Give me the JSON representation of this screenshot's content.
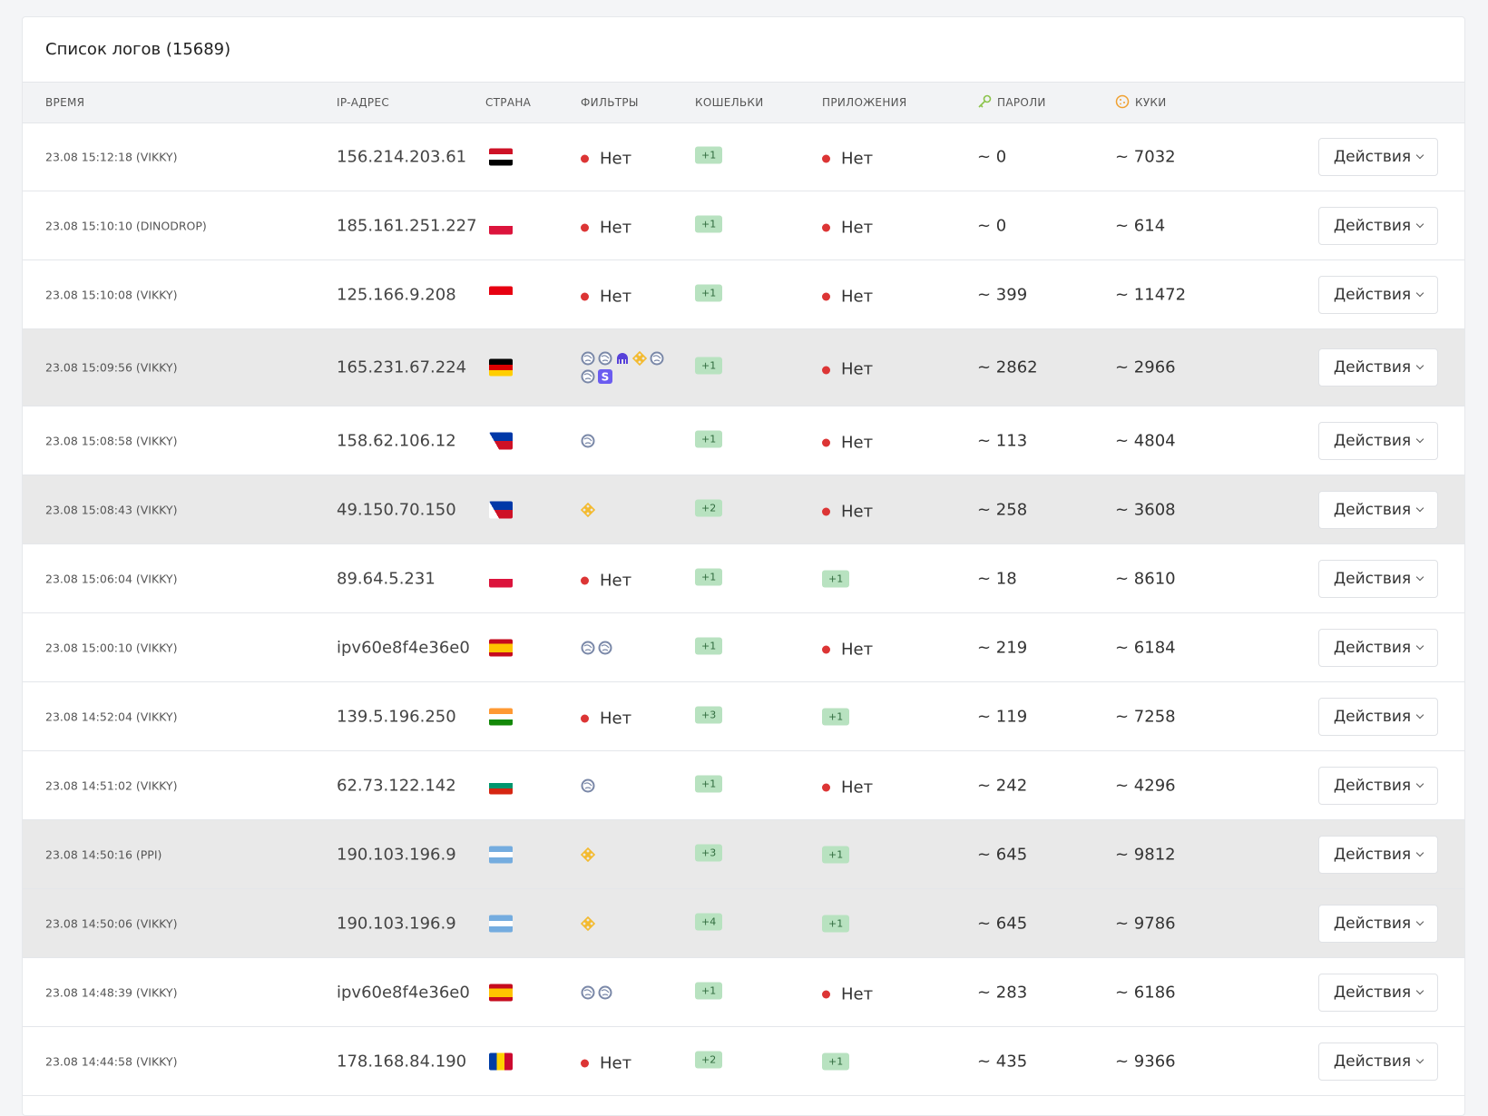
{
  "header": {
    "title": "Список логов (15689)"
  },
  "table": {
    "columns": [
      "ВРЕМЯ",
      "IP-АДРЕС",
      "СТРАНА",
      "ФИЛЬТРЫ",
      "КОШЕЛЬКИ",
      "ПРИЛОЖЕНИЯ",
      "ПАРОЛИ",
      "КУКИ"
    ],
    "rows": [
      {
        "time": "23.08 15:12:18 (VIKKY)",
        "ip": "156.214.203.61",
        "filters": "Нет",
        "wallets": "+1",
        "apps": "Нет",
        "passwords": "~ 0",
        "cookies": "~ 7032",
        "action": "Действия"
      },
      {
        "time": "23.08 15:10:10 (DINODROP)",
        "ip": "185.161.251.227",
        "filters": "Нет",
        "wallets": "+1",
        "apps": "Нет",
        "passwords": "~ 0",
        "cookies": "~ 614",
        "action": "Действия"
      },
      {
        "time": "23.08 15:10:08 (VIKKY)",
        "ip": "125.166.9.208",
        "filters": "Нет",
        "wallets": "+1",
        "apps": "Нет",
        "passwords": "~ 399",
        "cookies": "~ 11472",
        "action": "Действия"
      },
      {
        "time": "23.08 15:09:56 (VIKKY)",
        "ip": "165.231.67.224",
        "wallets": "+1",
        "apps": "Нет",
        "passwords": "~ 2862",
        "cookies": "~ 2966",
        "action": "Действия"
      },
      {
        "time": "23.08 15:08:58 (VIKKY)",
        "ip": "158.62.106.12",
        "wallets": "+1",
        "apps": "Нет",
        "passwords": "~ 113",
        "cookies": "~ 4804",
        "action": "Действия"
      },
      {
        "time": "23.08 15:08:43 (VIKKY)",
        "ip": "49.150.70.150",
        "wallets": "+2",
        "apps": "Нет",
        "passwords": "~ 258",
        "cookies": "~ 3608",
        "action": "Действия"
      },
      {
        "time": "23.08 15:06:04 (VIKKY)",
        "ip": "89.64.5.231",
        "filters": "Нет",
        "wallets": "+1",
        "apps": "+1",
        "passwords": "~ 18",
        "cookies": "~ 8610",
        "action": "Действия"
      },
      {
        "time": "23.08 15:00:10 (VIKKY)",
        "ip": "ipv60e8f4e36e0",
        "wallets": "+1",
        "apps": "Нет",
        "passwords": "~ 219",
        "cookies": "~ 6184",
        "action": "Действия"
      },
      {
        "time": "23.08 14:52:04 (VIKKY)",
        "ip": "139.5.196.250",
        "filters": "Нет",
        "wallets": "+3",
        "apps": "+1",
        "passwords": "~ 119",
        "cookies": "~ 7258",
        "action": "Действия"
      },
      {
        "time": "23.08 14:51:02 (VIKKY)",
        "ip": "62.73.122.142",
        "wallets": "+1",
        "apps": "Нет",
        "passwords": "~ 242",
        "cookies": "~ 4296",
        "action": "Действия"
      },
      {
        "time": "23.08 14:50:16 (PPI)",
        "ip": "190.103.196.9",
        "wallets": "+3",
        "apps": "+1",
        "passwords": "~ 645",
        "cookies": "~ 9812",
        "action": "Действия"
      },
      {
        "time": "23.08 14:50:06 (VIKKY)",
        "ip": "190.103.196.9",
        "wallets": "+4",
        "apps": "+1",
        "passwords": "~ 645",
        "cookies": "~ 9786",
        "action": "Действия"
      },
      {
        "time": "23.08 14:48:39 (VIKKY)",
        "ip": "ipv60e8f4e36e0",
        "wallets": "+1",
        "apps": "Нет",
        "passwords": "~ 283",
        "cookies": "~ 6186",
        "action": "Действия"
      },
      {
        "time": "23.08 14:44:58 (VIKKY)",
        "ip": "178.168.84.190",
        "filters": "Нет",
        "wallets": "+2",
        "apps": "+1",
        "passwords": "~ 435",
        "cookies": "~ 9366",
        "action": "Действия"
      }
    ]
  }
}
